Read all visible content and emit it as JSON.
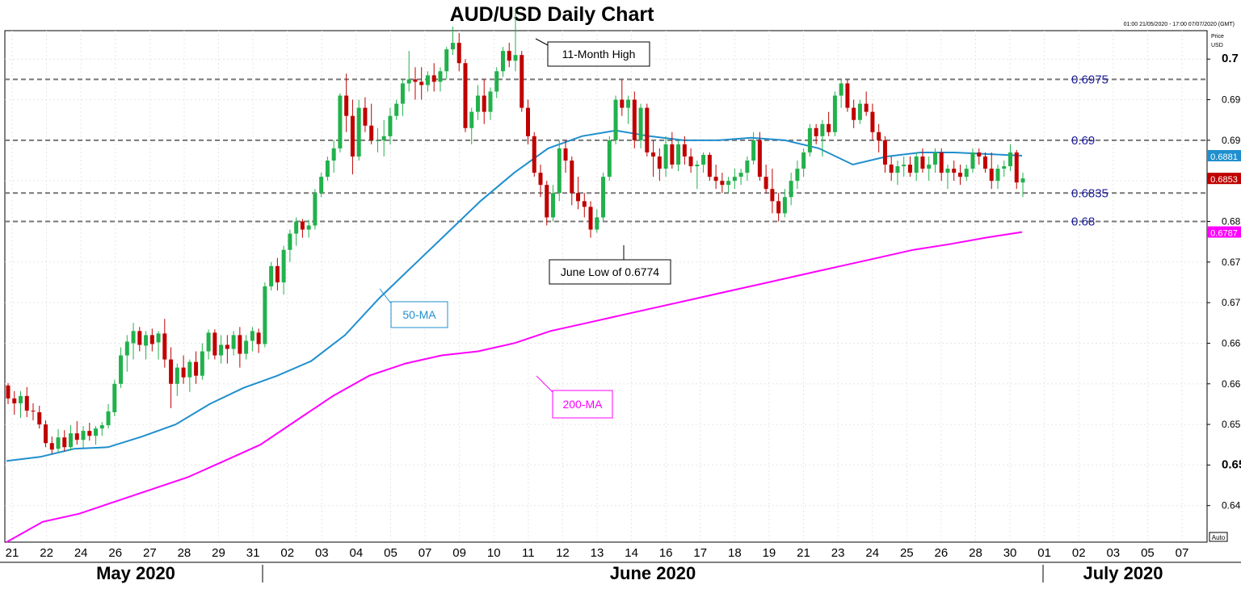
{
  "title": "AUD/USD Daily Chart",
  "meta_range": "01:00 21/05/2020 - 17:00 07/07/2020 (GMT)",
  "price_axis_label": [
    "Price",
    "USD"
  ],
  "auto_label": "Auto",
  "colors": {
    "bull": "#22b14c",
    "bear": "#c00000",
    "ma50": "#1f8fce",
    "ma200": "#ff00ff",
    "level_text": "#1a1a9e"
  },
  "chart_data": {
    "type": "candlestick",
    "title": "AUD/USD Daily Chart",
    "ylim": [
      0.6405,
      0.7035
    ],
    "y_ticks": [
      "0.645",
      "0.65",
      "0.655",
      "0.66",
      "0.665",
      "0.67",
      "0.675",
      "0.68",
      "0.685",
      "0.69",
      "0.695",
      "0.7"
    ],
    "x_ticks": [
      "21",
      "22",
      "24",
      "26",
      "27",
      "28",
      "29",
      "31",
      "02",
      "03",
      "04",
      "05",
      "07",
      "09",
      "10",
      "11",
      "12",
      "13",
      "14",
      "16",
      "17",
      "18",
      "19",
      "21",
      "23",
      "24",
      "25",
      "26",
      "28",
      "30",
      "01",
      "02",
      "03",
      "05",
      "07"
    ],
    "month_labels": [
      "May 2020",
      "June 2020",
      "July 2020"
    ],
    "candles": [
      {
        "o": 0.6598,
        "h": 0.6601,
        "l": 0.6575,
        "c": 0.6582
      },
      {
        "o": 0.6582,
        "h": 0.6591,
        "l": 0.6562,
        "c": 0.6576
      },
      {
        "o": 0.6576,
        "h": 0.6591,
        "l": 0.6558,
        "c": 0.6585
      },
      {
        "o": 0.6585,
        "h": 0.6596,
        "l": 0.6559,
        "c": 0.6567
      },
      {
        "o": 0.6567,
        "h": 0.6576,
        "l": 0.6555,
        "c": 0.6566
      },
      {
        "o": 0.6565,
        "h": 0.6573,
        "l": 0.6545,
        "c": 0.655
      },
      {
        "o": 0.655,
        "h": 0.6555,
        "l": 0.6522,
        "c": 0.6527
      },
      {
        "o": 0.6527,
        "h": 0.6535,
        "l": 0.6514,
        "c": 0.6519
      },
      {
        "o": 0.652,
        "h": 0.6544,
        "l": 0.6515,
        "c": 0.6534
      },
      {
        "o": 0.6534,
        "h": 0.6543,
        "l": 0.6517,
        "c": 0.6522
      },
      {
        "o": 0.6522,
        "h": 0.6549,
        "l": 0.6518,
        "c": 0.6539
      },
      {
        "o": 0.6539,
        "h": 0.6554,
        "l": 0.6525,
        "c": 0.6531
      },
      {
        "o": 0.6531,
        "h": 0.6548,
        "l": 0.6521,
        "c": 0.6542
      },
      {
        "o": 0.6542,
        "h": 0.6552,
        "l": 0.653,
        "c": 0.6536
      },
      {
        "o": 0.6536,
        "h": 0.6548,
        "l": 0.6525,
        "c": 0.6545
      },
      {
        "o": 0.6545,
        "h": 0.6553,
        "l": 0.6536,
        "c": 0.6549
      },
      {
        "o": 0.6549,
        "h": 0.6575,
        "l": 0.6545,
        "c": 0.6566
      },
      {
        "o": 0.6565,
        "h": 0.6605,
        "l": 0.656,
        "c": 0.66
      },
      {
        "o": 0.66,
        "h": 0.6645,
        "l": 0.6595,
        "c": 0.6635
      },
      {
        "o": 0.6635,
        "h": 0.666,
        "l": 0.6615,
        "c": 0.6652
      },
      {
        "o": 0.665,
        "h": 0.6675,
        "l": 0.663,
        "c": 0.6665
      },
      {
        "o": 0.6665,
        "h": 0.667,
        "l": 0.664,
        "c": 0.6648
      },
      {
        "o": 0.6647,
        "h": 0.6665,
        "l": 0.663,
        "c": 0.666
      },
      {
        "o": 0.666,
        "h": 0.6668,
        "l": 0.664,
        "c": 0.6649
      },
      {
        "o": 0.6651,
        "h": 0.6665,
        "l": 0.663,
        "c": 0.6662
      },
      {
        "o": 0.6662,
        "h": 0.668,
        "l": 0.662,
        "c": 0.663
      },
      {
        "o": 0.663,
        "h": 0.6645,
        "l": 0.657,
        "c": 0.66
      },
      {
        "o": 0.66,
        "h": 0.6625,
        "l": 0.6585,
        "c": 0.662
      },
      {
        "o": 0.662,
        "h": 0.6635,
        "l": 0.66,
        "c": 0.6608
      },
      {
        "o": 0.6608,
        "h": 0.663,
        "l": 0.659,
        "c": 0.6627
      },
      {
        "o": 0.6627,
        "h": 0.664,
        "l": 0.66,
        "c": 0.661
      },
      {
        "o": 0.661,
        "h": 0.665,
        "l": 0.6605,
        "c": 0.664
      },
      {
        "o": 0.664,
        "h": 0.6667,
        "l": 0.663,
        "c": 0.6663
      },
      {
        "o": 0.6663,
        "h": 0.6667,
        "l": 0.663,
        "c": 0.6635
      },
      {
        "o": 0.6635,
        "h": 0.666,
        "l": 0.6625,
        "c": 0.6648
      },
      {
        "o": 0.6648,
        "h": 0.666,
        "l": 0.6625,
        "c": 0.6643
      },
      {
        "o": 0.6643,
        "h": 0.6665,
        "l": 0.6635,
        "c": 0.666
      },
      {
        "o": 0.666,
        "h": 0.667,
        "l": 0.662,
        "c": 0.6637
      },
      {
        "o": 0.6637,
        "h": 0.666,
        "l": 0.663,
        "c": 0.6653
      },
      {
        "o": 0.6653,
        "h": 0.667,
        "l": 0.664,
        "c": 0.6665
      },
      {
        "o": 0.6663,
        "h": 0.6668,
        "l": 0.6638,
        "c": 0.6649
      },
      {
        "o": 0.6649,
        "h": 0.6725,
        "l": 0.6645,
        "c": 0.672
      },
      {
        "o": 0.672,
        "h": 0.675,
        "l": 0.6715,
        "c": 0.6745
      },
      {
        "o": 0.6745,
        "h": 0.6755,
        "l": 0.6715,
        "c": 0.6725
      },
      {
        "o": 0.6725,
        "h": 0.677,
        "l": 0.671,
        "c": 0.6765
      },
      {
        "o": 0.6765,
        "h": 0.679,
        "l": 0.675,
        "c": 0.6785
      },
      {
        "o": 0.6785,
        "h": 0.6805,
        "l": 0.677,
        "c": 0.68
      },
      {
        "o": 0.68,
        "h": 0.6803,
        "l": 0.678,
        "c": 0.679
      },
      {
        "o": 0.679,
        "h": 0.6802,
        "l": 0.678,
        "c": 0.6795
      },
      {
        "o": 0.6795,
        "h": 0.684,
        "l": 0.679,
        "c": 0.6835
      },
      {
        "o": 0.6835,
        "h": 0.686,
        "l": 0.683,
        "c": 0.6855
      },
      {
        "o": 0.6855,
        "h": 0.688,
        "l": 0.685,
        "c": 0.6875
      },
      {
        "o": 0.6875,
        "h": 0.69,
        "l": 0.686,
        "c": 0.689
      },
      {
        "o": 0.689,
        "h": 0.6958,
        "l": 0.6885,
        "c": 0.6955
      },
      {
        "o": 0.6955,
        "h": 0.6982,
        "l": 0.691,
        "c": 0.693
      },
      {
        "o": 0.693,
        "h": 0.695,
        "l": 0.6858,
        "c": 0.688
      },
      {
        "o": 0.688,
        "h": 0.695,
        "l": 0.6875,
        "c": 0.694
      },
      {
        "o": 0.694,
        "h": 0.6953,
        "l": 0.691,
        "c": 0.6918
      },
      {
        "o": 0.6918,
        "h": 0.6945,
        "l": 0.6895,
        "c": 0.69
      },
      {
        "o": 0.69,
        "h": 0.6915,
        "l": 0.6885,
        "c": 0.69
      },
      {
        "o": 0.69,
        "h": 0.6925,
        "l": 0.688,
        "c": 0.6905
      },
      {
        "o": 0.6905,
        "h": 0.694,
        "l": 0.6895,
        "c": 0.693
      },
      {
        "o": 0.693,
        "h": 0.695,
        "l": 0.6925,
        "c": 0.6945
      },
      {
        "o": 0.6945,
        "h": 0.6975,
        "l": 0.693,
        "c": 0.697
      },
      {
        "o": 0.697,
        "h": 0.701,
        "l": 0.696,
        "c": 0.6975
      },
      {
        "o": 0.6975,
        "h": 0.699,
        "l": 0.695,
        "c": 0.6972
      },
      {
        "o": 0.6972,
        "h": 0.699,
        "l": 0.695,
        "c": 0.6968
      },
      {
        "o": 0.6968,
        "h": 0.6985,
        "l": 0.696,
        "c": 0.698
      },
      {
        "o": 0.698,
        "h": 0.6995,
        "l": 0.696,
        "c": 0.6972
      },
      {
        "o": 0.6972,
        "h": 0.699,
        "l": 0.696,
        "c": 0.6985
      },
      {
        "o": 0.6985,
        "h": 0.7015,
        "l": 0.6975,
        "c": 0.7012
      },
      {
        "o": 0.7012,
        "h": 0.704,
        "l": 0.7005,
        "c": 0.702
      },
      {
        "o": 0.702,
        "h": 0.7032,
        "l": 0.6985,
        "c": 0.6995
      },
      {
        "o": 0.6995,
        "h": 0.7,
        "l": 0.691,
        "c": 0.6915
      },
      {
        "o": 0.6915,
        "h": 0.694,
        "l": 0.6895,
        "c": 0.6935
      },
      {
        "o": 0.6935,
        "h": 0.6968,
        "l": 0.6925,
        "c": 0.6955
      },
      {
        "o": 0.6955,
        "h": 0.6975,
        "l": 0.692,
        "c": 0.6935
      },
      {
        "o": 0.6935,
        "h": 0.6965,
        "l": 0.6925,
        "c": 0.696
      },
      {
        "o": 0.696,
        "h": 0.699,
        "l": 0.6952,
        "c": 0.6985
      },
      {
        "o": 0.6985,
        "h": 0.7015,
        "l": 0.6978,
        "c": 0.701
      },
      {
        "o": 0.701,
        "h": 0.702,
        "l": 0.699,
        "c": 0.6998
      },
      {
        "o": 0.6998,
        "h": 0.7062,
        "l": 0.6985,
        "c": 0.7005
      },
      {
        "o": 0.7005,
        "h": 0.701,
        "l": 0.6935,
        "c": 0.694
      },
      {
        "o": 0.694,
        "h": 0.695,
        "l": 0.6895,
        "c": 0.6905
      },
      {
        "o": 0.6905,
        "h": 0.691,
        "l": 0.6855,
        "c": 0.686
      },
      {
        "o": 0.686,
        "h": 0.687,
        "l": 0.683,
        "c": 0.6845
      },
      {
        "o": 0.6845,
        "h": 0.685,
        "l": 0.6795,
        "c": 0.6805
      },
      {
        "o": 0.6805,
        "h": 0.6845,
        "l": 0.68,
        "c": 0.6835
      },
      {
        "o": 0.6835,
        "h": 0.69,
        "l": 0.6825,
        "c": 0.689
      },
      {
        "o": 0.689,
        "h": 0.69,
        "l": 0.686,
        "c": 0.6875
      },
      {
        "o": 0.6875,
        "h": 0.688,
        "l": 0.682,
        "c": 0.6835
      },
      {
        "o": 0.6835,
        "h": 0.6855,
        "l": 0.6815,
        "c": 0.6825
      },
      {
        "o": 0.6825,
        "h": 0.6835,
        "l": 0.6805,
        "c": 0.6818
      },
      {
        "o": 0.6818,
        "h": 0.6825,
        "l": 0.678,
        "c": 0.679
      },
      {
        "o": 0.679,
        "h": 0.6815,
        "l": 0.6786,
        "c": 0.6805
      },
      {
        "o": 0.6805,
        "h": 0.686,
        "l": 0.68,
        "c": 0.6855
      },
      {
        "o": 0.6855,
        "h": 0.6905,
        "l": 0.685,
        "c": 0.69
      },
      {
        "o": 0.69,
        "h": 0.6955,
        "l": 0.6895,
        "c": 0.695
      },
      {
        "o": 0.695,
        "h": 0.6975,
        "l": 0.693,
        "c": 0.694
      },
      {
        "o": 0.694,
        "h": 0.6955,
        "l": 0.692,
        "c": 0.695
      },
      {
        "o": 0.695,
        "h": 0.696,
        "l": 0.689,
        "c": 0.69
      },
      {
        "o": 0.69,
        "h": 0.6945,
        "l": 0.689,
        "c": 0.694
      },
      {
        "o": 0.694,
        "h": 0.6945,
        "l": 0.688,
        "c": 0.6885
      },
      {
        "o": 0.6885,
        "h": 0.69,
        "l": 0.6855,
        "c": 0.688
      },
      {
        "o": 0.688,
        "h": 0.689,
        "l": 0.685,
        "c": 0.6865
      },
      {
        "o": 0.6865,
        "h": 0.6905,
        "l": 0.6855,
        "c": 0.6895
      },
      {
        "o": 0.6895,
        "h": 0.691,
        "l": 0.6865,
        "c": 0.687
      },
      {
        "o": 0.687,
        "h": 0.69,
        "l": 0.6862,
        "c": 0.6895
      },
      {
        "o": 0.6895,
        "h": 0.6905,
        "l": 0.687,
        "c": 0.688
      },
      {
        "o": 0.688,
        "h": 0.689,
        "l": 0.686,
        "c": 0.6868
      },
      {
        "o": 0.6868,
        "h": 0.6875,
        "l": 0.684,
        "c": 0.687
      },
      {
        "o": 0.687,
        "h": 0.6885,
        "l": 0.686,
        "c": 0.6882
      },
      {
        "o": 0.6882,
        "h": 0.6885,
        "l": 0.685,
        "c": 0.6855
      },
      {
        "o": 0.6855,
        "h": 0.687,
        "l": 0.684,
        "c": 0.685
      },
      {
        "o": 0.685,
        "h": 0.686,
        "l": 0.6835,
        "c": 0.6845
      },
      {
        "o": 0.6845,
        "h": 0.6855,
        "l": 0.6835,
        "c": 0.685
      },
      {
        "o": 0.685,
        "h": 0.6865,
        "l": 0.684,
        "c": 0.6855
      },
      {
        "o": 0.6855,
        "h": 0.6865,
        "l": 0.6845,
        "c": 0.686
      },
      {
        "o": 0.686,
        "h": 0.688,
        "l": 0.685,
        "c": 0.6875
      },
      {
        "o": 0.6875,
        "h": 0.691,
        "l": 0.687,
        "c": 0.69
      },
      {
        "o": 0.69,
        "h": 0.691,
        "l": 0.685,
        "c": 0.6855
      },
      {
        "o": 0.6855,
        "h": 0.687,
        "l": 0.6835,
        "c": 0.684
      },
      {
        "o": 0.684,
        "h": 0.6865,
        "l": 0.681,
        "c": 0.6825
      },
      {
        "o": 0.6825,
        "h": 0.6835,
        "l": 0.68,
        "c": 0.681
      },
      {
        "o": 0.681,
        "h": 0.684,
        "l": 0.6805,
        "c": 0.683
      },
      {
        "o": 0.683,
        "h": 0.686,
        "l": 0.682,
        "c": 0.685
      },
      {
        "o": 0.685,
        "h": 0.6875,
        "l": 0.684,
        "c": 0.6865
      },
      {
        "o": 0.6865,
        "h": 0.689,
        "l": 0.6855,
        "c": 0.6885
      },
      {
        "o": 0.6885,
        "h": 0.692,
        "l": 0.688,
        "c": 0.6915
      },
      {
        "o": 0.6915,
        "h": 0.692,
        "l": 0.6895,
        "c": 0.6905
      },
      {
        "o": 0.6905,
        "h": 0.6925,
        "l": 0.688,
        "c": 0.692
      },
      {
        "o": 0.692,
        "h": 0.6935,
        "l": 0.6905,
        "c": 0.691
      },
      {
        "o": 0.691,
        "h": 0.696,
        "l": 0.6905,
        "c": 0.6955
      },
      {
        "o": 0.6955,
        "h": 0.6975,
        "l": 0.694,
        "c": 0.697
      },
      {
        "o": 0.697,
        "h": 0.6975,
        "l": 0.6935,
        "c": 0.694
      },
      {
        "o": 0.694,
        "h": 0.695,
        "l": 0.6915,
        "c": 0.6925
      },
      {
        "o": 0.6925,
        "h": 0.695,
        "l": 0.692,
        "c": 0.6945
      },
      {
        "o": 0.6945,
        "h": 0.696,
        "l": 0.693,
        "c": 0.6935
      },
      {
        "o": 0.6935,
        "h": 0.6945,
        "l": 0.69,
        "c": 0.691
      },
      {
        "o": 0.691,
        "h": 0.692,
        "l": 0.6885,
        "c": 0.69
      },
      {
        "o": 0.69,
        "h": 0.6905,
        "l": 0.686,
        "c": 0.687
      },
      {
        "o": 0.687,
        "h": 0.688,
        "l": 0.685,
        "c": 0.686
      },
      {
        "o": 0.686,
        "h": 0.6875,
        "l": 0.6845,
        "c": 0.6868
      },
      {
        "o": 0.6868,
        "h": 0.688,
        "l": 0.6855,
        "c": 0.687
      },
      {
        "o": 0.687,
        "h": 0.688,
        "l": 0.6855,
        "c": 0.686
      },
      {
        "o": 0.686,
        "h": 0.6885,
        "l": 0.685,
        "c": 0.688
      },
      {
        "o": 0.688,
        "h": 0.689,
        "l": 0.686,
        "c": 0.6865
      },
      {
        "o": 0.6865,
        "h": 0.688,
        "l": 0.685,
        "c": 0.687
      },
      {
        "o": 0.687,
        "h": 0.689,
        "l": 0.686,
        "c": 0.6885
      },
      {
        "o": 0.6885,
        "h": 0.689,
        "l": 0.685,
        "c": 0.686
      },
      {
        "o": 0.686,
        "h": 0.687,
        "l": 0.684,
        "c": 0.6865
      },
      {
        "o": 0.6865,
        "h": 0.6875,
        "l": 0.685,
        "c": 0.686
      },
      {
        "o": 0.686,
        "h": 0.687,
        "l": 0.6845,
        "c": 0.6855
      },
      {
        "o": 0.6855,
        "h": 0.687,
        "l": 0.685,
        "c": 0.6865
      },
      {
        "o": 0.6865,
        "h": 0.689,
        "l": 0.686,
        "c": 0.6885
      },
      {
        "o": 0.6885,
        "h": 0.689,
        "l": 0.687,
        "c": 0.688
      },
      {
        "o": 0.688,
        "h": 0.6885,
        "l": 0.686,
        "c": 0.6865
      },
      {
        "o": 0.6865,
        "h": 0.6885,
        "l": 0.684,
        "c": 0.685
      },
      {
        "o": 0.685,
        "h": 0.687,
        "l": 0.684,
        "c": 0.6865
      },
      {
        "o": 0.6865,
        "h": 0.6875,
        "l": 0.6855,
        "c": 0.6868
      },
      {
        "o": 0.6868,
        "h": 0.6895,
        "l": 0.6862,
        "c": 0.6885
      },
      {
        "o": 0.6885,
        "h": 0.6888,
        "l": 0.684,
        "c": 0.6848
      },
      {
        "o": 0.6848,
        "h": 0.686,
        "l": 0.683,
        "c": 0.6853
      }
    ],
    "ma50": [
      0.6505,
      0.651,
      0.652,
      0.6522,
      0.6535,
      0.655,
      0.6575,
      0.6595,
      0.661,
      0.6628,
      0.666,
      0.6705,
      0.6745,
      0.6785,
      0.6825,
      0.686,
      0.689,
      0.6905,
      0.6912,
      0.6905,
      0.69,
      0.69,
      0.6903,
      0.69,
      0.689,
      0.687,
      0.688,
      0.6885,
      0.6885,
      0.6883,
      0.6881
    ],
    "ma200": [
      0.6405,
      0.643,
      0.644,
      0.6455,
      0.647,
      0.6485,
      0.6505,
      0.6525,
      0.6555,
      0.6585,
      0.661,
      0.6625,
      0.6635,
      0.664,
      0.665,
      0.6665,
      0.6675,
      0.6685,
      0.6695,
      0.6705,
      0.6715,
      0.6725,
      0.6735,
      0.6745,
      0.6755,
      0.6765,
      0.6772,
      0.678,
      0.6787
    ],
    "levels": [
      0.6975,
      0.69,
      0.6835,
      0.68
    ],
    "level_labels": [
      "0.6975",
      "0.69",
      "0.6835",
      "0.68"
    ],
    "price_tags": [
      {
        "label": "0.6881",
        "color": "#1f8fce"
      },
      {
        "label": "0.6853",
        "color": "#c00000"
      },
      {
        "label": "0.6787",
        "color": "#ff00ff"
      }
    ],
    "annotations": [
      "11-Month High",
      "June Low of 0.6774",
      "50-MA",
      "200-MA"
    ]
  }
}
